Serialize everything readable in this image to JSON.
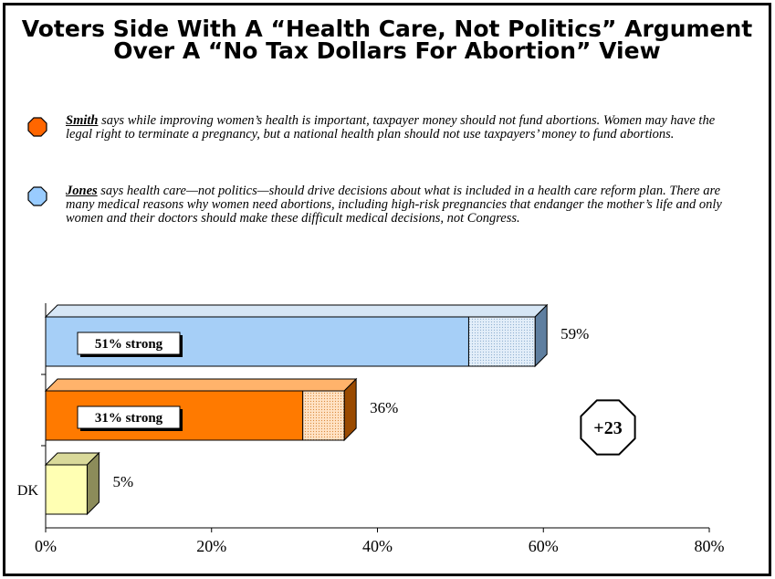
{
  "title_line1": "Voters Side With A “Health Care, Not Politics” Argument",
  "title_line2": "Over A “No Tax Dollars For Abortion” View",
  "statements": [
    {
      "name": "Smith",
      "text": " says while improving women’s health is important, taxpayer money should not fund abortions. Women may have the legal right to terminate a pregnancy, but a national health plan should not use taxpayers’ money to fund abortions.",
      "color": "#ff6600"
    },
    {
      "name": "Jones",
      "text": " says health care—not politics—should drive decisions about what is included in a health care reform plan.  There are many medical reasons why women need abortions, including high-risk pregnancies that endanger the mother’s life and only women and their doctors should make these difficult medical decisions, not Congress.",
      "color": "#99ccff"
    }
  ],
  "chart_data": {
    "type": "bar",
    "orientation": "horizontal",
    "x_axis": {
      "min": 0,
      "max": 80,
      "ticks": [
        0,
        20,
        40,
        60,
        80
      ],
      "tick_labels": [
        "0%",
        "20%",
        "40%",
        "60%",
        "80%"
      ]
    },
    "grid": false,
    "bars": [
      {
        "category": "",
        "total": 59,
        "strong": 51,
        "total_label": "59%",
        "strong_label": "51% strong",
        "color": "#a6cff7",
        "side_color": "#5f7fa0",
        "top_color": "#d6e6f5"
      },
      {
        "category": "",
        "total": 36,
        "strong": 31,
        "total_label": "36%",
        "strong_label": "31% strong",
        "color": "#ff7a00",
        "side_color": "#9a4a00",
        "top_color": "#ffb36b"
      },
      {
        "category": "DK",
        "total": 5,
        "strong": null,
        "total_label": "5%",
        "strong_label": "",
        "color": "#ffffb3",
        "side_color": "#8c8c5a",
        "top_color": "#d9d99a"
      }
    ],
    "annotation": "+23"
  }
}
